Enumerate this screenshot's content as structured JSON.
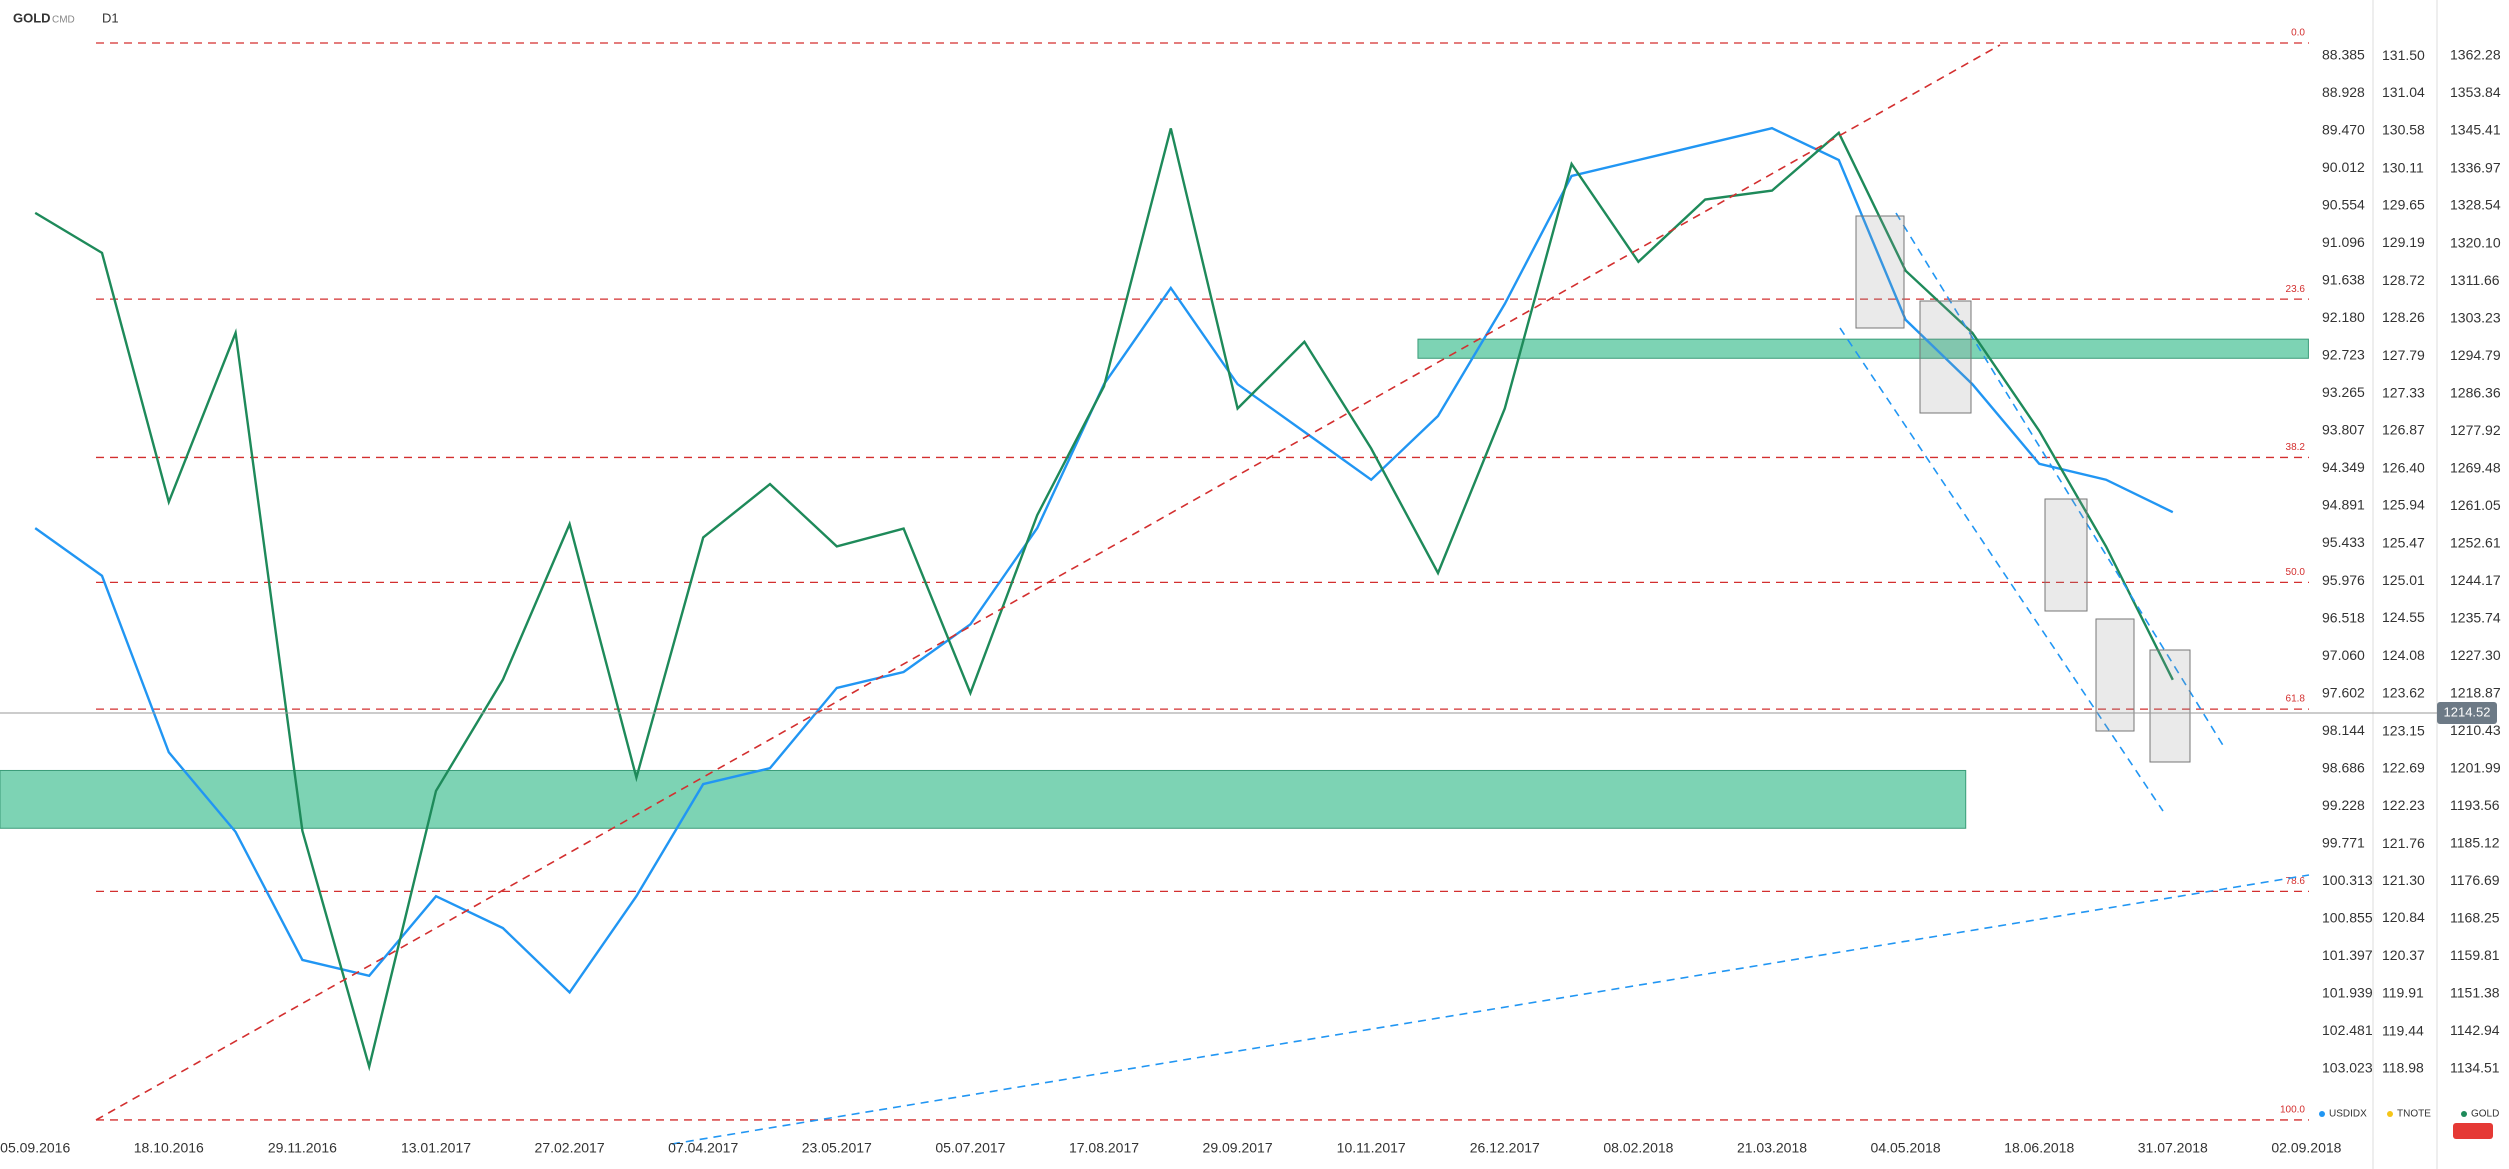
{
  "header": {
    "symbol": "GOLD",
    "source": "CMD",
    "timeframe": "D1"
  },
  "chart_data": {
    "type": "line",
    "x": [
      "05.09.2016",
      null,
      "18.10.2016",
      null,
      "29.11.2016",
      null,
      "13.01.2017",
      null,
      "27.02.2017",
      null,
      "07.04.2017",
      null,
      "23.05.2017",
      null,
      "05.07.2017",
      null,
      "17.08.2017",
      null,
      "29.09.2017",
      null,
      "10.11.2017",
      null,
      "26.12.2017",
      null,
      "08.02.2018",
      null,
      "21.03.2018",
      null,
      "04.05.2018",
      null,
      "18.06.2018",
      null,
      "31.07.2018",
      null,
      "02.09.2018"
    ],
    "series": [
      {
        "name": "USDIDX",
        "color": "#2196f3",
        "axis": "y2",
        "values": [
          95.21,
          95.9,
          98.45,
          99.6,
          101.45,
          101.68,
          100.53,
          100.99,
          101.92,
          100.53,
          98.91,
          98.68,
          97.52,
          97.29,
          96.6,
          95.21,
          93.13,
          91.74,
          93.13,
          93.82,
          94.51,
          93.59,
          91.97,
          90.12,
          89.89,
          89.66,
          89.43,
          89.89,
          92.2,
          93.13,
          94.28,
          94.51,
          94.98,
          null,
          null
        ]
      },
      {
        "name": "TNOTE",
        "color": "#f5c518",
        "axis": "y3",
        "values": [
          null,
          null,
          null,
          null,
          null,
          null,
          null,
          null,
          null,
          null,
          null,
          null,
          null,
          null,
          null,
          null,
          null,
          null,
          null,
          null,
          null,
          null,
          null,
          null,
          null,
          null,
          null,
          null,
          null,
          null,
          null,
          null,
          null,
          null,
          null
        ]
      },
      {
        "name": "GOLD",
        "color": "#1e8a5a",
        "axis": "y",
        "values": [
          1327,
          1318,
          1262,
          1300,
          1188,
          1135,
          1197,
          1222,
          1257,
          1200,
          1254,
          1266,
          1252,
          1256,
          1219,
          1259,
          1288,
          1346,
          1283,
          1298,
          1274,
          1246,
          1283,
          1338,
          1316,
          1330,
          1332,
          1345,
          1314,
          1300,
          1278,
          1252,
          1222,
          null,
          null
        ]
      }
    ],
    "ylim": [
      1121.19,
      1367.68
    ],
    "yticks": [
      1362.28,
      1353.84,
      1345.41,
      1336.97,
      1328.54,
      {
        "value": 1320.1,
        "label": "1320.10"
      },
      1311.66,
      1303.23,
      1294.79,
      1286.36,
      1277.92,
      1269.48,
      1261.05,
      1252.61,
      1244.17,
      1235.74,
      {
        "value": 1227.3,
        "label": "1227.30"
      },
      1218.87,
      1210.43,
      1201.99,
      1193.56,
      1185.12,
      1176.69,
      1168.25,
      1159.81,
      1151.38,
      1142.94,
      1134.51
    ],
    "y2lim": [
      103.88,
      88.04
    ],
    "y2ticks": [
      88.385,
      88.928,
      {
        "value": 89.47,
        "label": "89.470"
      },
      90.012,
      90.554,
      91.096,
      91.638,
      {
        "value": 92.18,
        "label": "92.180"
      },
      92.723,
      93.265,
      93.807,
      94.349,
      94.891,
      95.433,
      95.976,
      96.518,
      {
        "value": 97.06,
        "label": "97.060"
      },
      97.602,
      98.144,
      98.686,
      99.228,
      99.771,
      100.313,
      100.855,
      101.397,
      101.939,
      102.481,
      103.023
    ],
    "y3lim": [
      118.25,
      131.8
    ],
    "y3ticks": [
      {
        "value": 131.5,
        "label": "131.50"
      },
      131.04,
      130.58,
      130.11,
      129.65,
      129.19,
      128.72,
      128.26,
      127.79,
      127.33,
      126.87,
      {
        "value": 126.4,
        "label": "126.40"
      },
      125.94,
      125.47,
      125.01,
      124.55,
      124.08,
      123.62,
      123.15,
      122.69,
      122.23,
      121.76,
      {
        "value": 121.3,
        "label": "121.30"
      },
      120.84,
      120.37,
      119.91,
      119.44,
      118.98
    ],
    "last_price": 1214.52,
    "fib_levels": [
      {
        "label": "0.0",
        "value": 1365.2
      },
      {
        "label": "23.6",
        "value": 1307.6
      },
      {
        "label": "38.2",
        "value": 1272
      },
      {
        "label": "50.0",
        "value": 1243.9
      },
      {
        "label": "61.8",
        "value": 1215.4
      },
      {
        "label": "78.6",
        "value": 1174.4
      },
      {
        "label": "100.0",
        "value": 1123
      }
    ],
    "zones": [
      {
        "x": [
          -0.53,
          28.9
        ],
        "y": [
          1188.6,
          1201.6
        ]
      },
      {
        "x": [
          20.7,
          34.03
        ],
        "y": [
          1294.3,
          1298.6
        ]
      }
    ]
  }
}
